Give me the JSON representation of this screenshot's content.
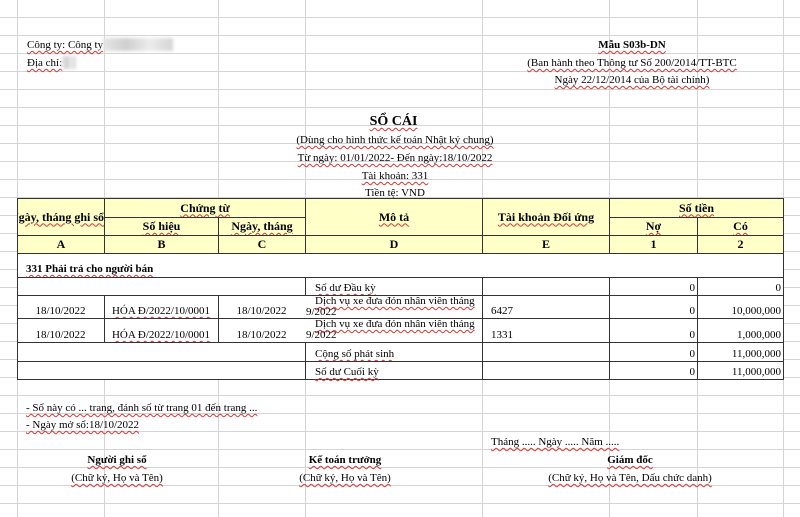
{
  "header_left": {
    "company_label": "Công ty: Công ty",
    "address_label": "Địa chỉ:"
  },
  "header_right": {
    "form": "Mẫu S03b-DN",
    "issued": "(Ban hành theo Thông tư Số 200/2014/TT-BTC",
    "date": "Ngày 22/12/2014 của Bộ tài chính)"
  },
  "title": {
    "main": "SỔ CÁI",
    "sub": "(Dùng cho hình thức kế toán Nhật ký chung)",
    "period": "Từ ngày: 01/01/2022- Đến ngày:18/10/2022",
    "account": "Tài khoản: 331",
    "currency": "Tiền tệ: VND"
  },
  "table": {
    "headers": {
      "date": "Ngày, tháng ghi sổ",
      "voucher": "Chứng từ",
      "voucher_no": "Số hiệu",
      "voucher_date": "Ngày, tháng",
      "desc": "Mô tả",
      "contra": "Tài khoản Đối ứng",
      "amount": "Số tiền",
      "debit": "Nợ",
      "credit": "Có"
    },
    "codes": [
      "A",
      "B",
      "C",
      "D",
      "E",
      "1",
      "2"
    ],
    "section": "331 Phải trả cho người bán",
    "opening": {
      "desc": "Số dư Đầu kỳ",
      "debit": "0",
      "credit": "0"
    },
    "rows": [
      {
        "date": "18/10/2022",
        "no": "HÓA Đ/2022/10/0001",
        "vdate": "18/10/2022",
        "desc1": "Dịch vụ xe đưa đón nhân viên tháng",
        "desc2": "9/2022",
        "contra": "6427",
        "debit": "0",
        "credit": "10,000,000"
      },
      {
        "date": "18/10/2022",
        "no": "HÓA Đ/2022/10/0001",
        "vdate": "18/10/2022",
        "desc1": "Dịch vụ xe đưa đón nhân viên tháng",
        "desc2": "9/2022",
        "contra": "1331",
        "debit": "0",
        "credit": "1,000,000"
      }
    ],
    "total": {
      "desc": "Cộng số phát sinh",
      "debit": "0",
      "credit": "11,000,000"
    },
    "closing": {
      "desc": "Số dư Cuối kỳ",
      "debit": "0",
      "credit": "11,000,000"
    }
  },
  "footer": {
    "pages": "- Sổ này có ... trang, đánh số từ trang 01 đến trang ...",
    "open_date": "- Ngày mở sổ:18/10/2022",
    "date_line": "Tháng ..... Ngày ..... Năm .....",
    "signers": [
      {
        "role": "Người ghi sổ",
        "note": "(Chữ ký, Họ và Tên)"
      },
      {
        "role": "Kế toán trưởng",
        "note": "(Chữ ký, Họ và Tên)"
      },
      {
        "role": "Giám đốc",
        "note": "(Chữ ký, Họ và Tên, Dấu chức danh)"
      }
    ]
  }
}
